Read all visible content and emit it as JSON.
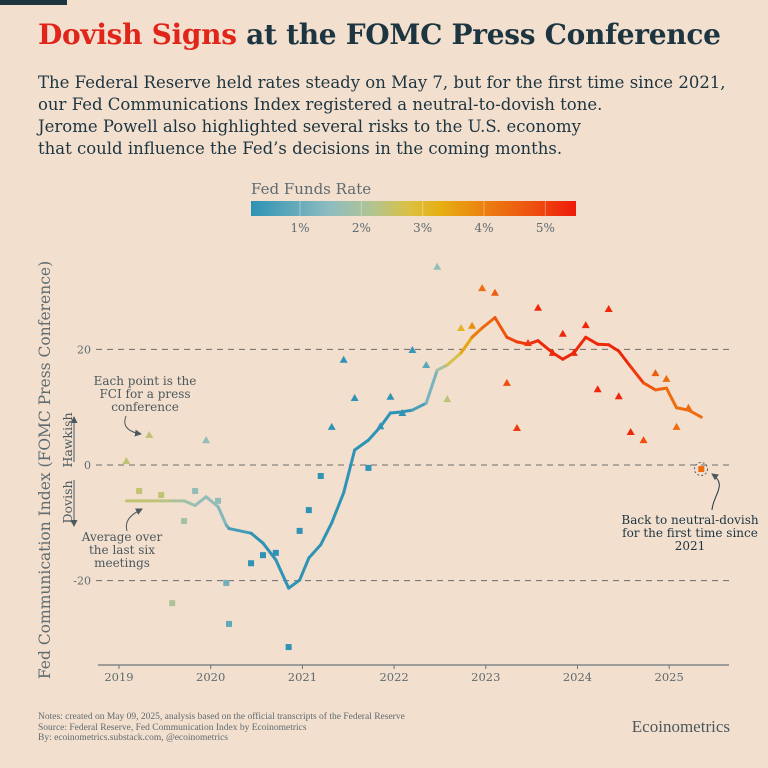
{
  "header": {
    "title_highlight": "Dovish Signs",
    "title_rest": " at the FOMC Press Conference",
    "subtitle_lines": [
      "The Federal Reserve held rates steady on May 7, but for the first time since 2021,",
      "our Fed Communications Index registered a neutral-to-dovish tone.",
      "Jerome Powell also highlighted several risks to the U.S. economy",
      "that could influence the Fed’s decisions in the coming months."
    ]
  },
  "colors": {
    "title_highlight": "#e0261b",
    "text": "#1d3540",
    "background": "#f2dfce"
  },
  "chart_data": {
    "type": "scatter",
    "ylabel": "Fed Communication Index (FOMC Press Conference)",
    "ylim": [
      -35,
      37
    ],
    "xlim": [
      2018.8,
      2025.65
    ],
    "yticks": [
      -20,
      0,
      20
    ],
    "ytick_labels": [
      "-20",
      "0",
      "20"
    ],
    "xticks": [
      2019,
      2020,
      2021,
      2022,
      2023,
      2024,
      2025
    ],
    "xtick_labels": [
      "2019",
      "2020",
      "2021",
      "2022",
      "2023",
      "2024",
      "2025"
    ],
    "grid": "dashed horizontal at -20, 0, 20",
    "hawkish_label": "Hawkish",
    "dovish_label": "Dovish",
    "colorbar": {
      "title": "Fed Funds Rate",
      "range": [
        0.2,
        5.5
      ],
      "ticks": [
        "1%",
        "2%",
        "3%",
        "4%",
        "5%"
      ],
      "tick_values": [
        1,
        2,
        3,
        4,
        5
      ],
      "stops": [
        [
          0.2,
          "#2e93b5"
        ],
        [
          1.5,
          "#8fbcbf"
        ],
        [
          2.2,
          "#b3c48e"
        ],
        [
          2.8,
          "#dcc040"
        ],
        [
          3.3,
          "#e6af12"
        ],
        [
          4.0,
          "#ec8010"
        ],
        [
          4.8,
          "#ee5010"
        ],
        [
          5.5,
          "#ee1a0a"
        ]
      ]
    },
    "marker_rule": "triangle when FCI > 0, square when FCI < 0",
    "series": [
      {
        "kind": "points",
        "columns": [
          "date",
          "fci",
          "fed_funds_rate"
        ],
        "values": [
          [
            2019.08,
            0.7,
            2.4
          ],
          [
            2019.22,
            -4.5,
            2.4
          ],
          [
            2019.33,
            5.2,
            2.4
          ],
          [
            2019.46,
            -5.2,
            2.4
          ],
          [
            2019.58,
            -23.9,
            2.1
          ],
          [
            2019.71,
            -9.7,
            1.9
          ],
          [
            2019.83,
            -4.5,
            1.6
          ],
          [
            2019.95,
            4.3,
            1.6
          ],
          [
            2020.08,
            -6.2,
            1.6
          ],
          [
            2020.17,
            -20.4,
            1.1
          ],
          [
            2020.2,
            -27.5,
            0.9
          ],
          [
            2020.44,
            -17,
            0.1
          ],
          [
            2020.57,
            -15.6,
            0.1
          ],
          [
            2020.71,
            -15.2,
            0.1
          ],
          [
            2020.85,
            -31.5,
            0.1
          ],
          [
            2020.97,
            -11.4,
            0.1
          ],
          [
            2021.07,
            -7.8,
            0.1
          ],
          [
            2021.2,
            -1.9,
            0.1
          ],
          [
            2021.32,
            6.6,
            0.1
          ],
          [
            2021.45,
            18.2,
            0.1
          ],
          [
            2021.57,
            11.6,
            0.1
          ],
          [
            2021.72,
            -0.5,
            0.1
          ],
          [
            2021.85,
            6.7,
            0.1
          ],
          [
            2021.96,
            11.8,
            0.1
          ],
          [
            2022.09,
            9,
            0.1
          ],
          [
            2022.2,
            19.9,
            0.33
          ],
          [
            2022.35,
            17.3,
            0.83
          ],
          [
            2022.47,
            34.3,
            1.58
          ],
          [
            2022.58,
            11.4,
            2.33
          ],
          [
            2022.73,
            23.7,
            3.08
          ],
          [
            2022.85,
            24.1,
            3.83
          ],
          [
            2022.96,
            30.6,
            4.33
          ],
          [
            2023.1,
            29.8,
            4.58
          ],
          [
            2023.23,
            14.2,
            4.83
          ],
          [
            2023.34,
            6.4,
            5.08
          ],
          [
            2023.46,
            21.1,
            5.08
          ],
          [
            2023.57,
            27.2,
            5.33
          ],
          [
            2023.73,
            19.4,
            5.33
          ],
          [
            2023.84,
            22.7,
            5.33
          ],
          [
            2023.96,
            19.4,
            5.33
          ],
          [
            2024.09,
            24.2,
            5.33
          ],
          [
            2024.22,
            13.1,
            5.33
          ],
          [
            2024.34,
            27,
            5.33
          ],
          [
            2024.45,
            11.9,
            5.33
          ],
          [
            2024.58,
            5.7,
            5.33
          ],
          [
            2024.72,
            4.3,
            4.83
          ],
          [
            2024.85,
            15.9,
            4.58
          ],
          [
            2024.97,
            14.9,
            4.33
          ],
          [
            2025.08,
            6.6,
            4.33
          ],
          [
            2025.21,
            9.9,
            4.33
          ],
          [
            2025.35,
            -0.7,
            4.33
          ]
        ]
      },
      {
        "kind": "line",
        "name": "Average over the last six meetings",
        "columns": [
          "date",
          "fci_avg",
          "fed_funds_rate"
        ],
        "values": [
          [
            2019.08,
            -6.2,
            2.4
          ],
          [
            2019.22,
            -6.2,
            2.4
          ],
          [
            2019.33,
            -6.2,
            2.4
          ],
          [
            2019.46,
            -6.2,
            2.4
          ],
          [
            2019.58,
            -6.2,
            2.1
          ],
          [
            2019.71,
            -6.2,
            1.9
          ],
          [
            2019.83,
            -7,
            1.6
          ],
          [
            2019.95,
            -5.5,
            1.6
          ],
          [
            2020.08,
            -7.2,
            1.6
          ],
          [
            2020.17,
            -10.4,
            1.1
          ],
          [
            2020.2,
            -11,
            0.9
          ],
          [
            2020.44,
            -11.8,
            0.1
          ],
          [
            2020.57,
            -13.5,
            0.1
          ],
          [
            2020.71,
            -16.4,
            0.1
          ],
          [
            2020.85,
            -21.3,
            0.1
          ],
          [
            2020.97,
            -19.9,
            0.1
          ],
          [
            2021.07,
            -16.1,
            0.1
          ],
          [
            2021.2,
            -13.8,
            0.1
          ],
          [
            2021.32,
            -10,
            0.1
          ],
          [
            2021.45,
            -4.8,
            0.1
          ],
          [
            2021.57,
            2.6,
            0.1
          ],
          [
            2021.72,
            4.3,
            0.1
          ],
          [
            2021.85,
            6.6,
            0.1
          ],
          [
            2021.96,
            9,
            0.1
          ],
          [
            2022.09,
            9.2,
            0.1
          ],
          [
            2022.2,
            9.5,
            0.33
          ],
          [
            2022.35,
            10.7,
            0.83
          ],
          [
            2022.47,
            16.4,
            1.58
          ],
          [
            2022.58,
            17.3,
            2.33
          ],
          [
            2022.73,
            19.4,
            3.08
          ],
          [
            2022.85,
            22.1,
            3.83
          ],
          [
            2022.96,
            23.7,
            4.33
          ],
          [
            2023.1,
            25.5,
            4.58
          ],
          [
            2023.23,
            22.1,
            4.83
          ],
          [
            2023.34,
            21.3,
            5.08
          ],
          [
            2023.46,
            20.9,
            5.08
          ],
          [
            2023.57,
            21.5,
            5.33
          ],
          [
            2023.73,
            19.4,
            5.33
          ],
          [
            2023.84,
            18.3,
            5.33
          ],
          [
            2023.96,
            19.4,
            5.33
          ],
          [
            2024.09,
            22.1,
            5.33
          ],
          [
            2024.22,
            20.9,
            5.33
          ],
          [
            2024.34,
            20.8,
            5.33
          ],
          [
            2024.45,
            19.7,
            5.33
          ],
          [
            2024.58,
            17,
            5.33
          ],
          [
            2024.72,
            14.2,
            4.83
          ],
          [
            2024.85,
            13,
            4.58
          ],
          [
            2024.97,
            13.3,
            4.33
          ],
          [
            2025.08,
            9.9,
            4.33
          ],
          [
            2025.21,
            9.5,
            4.33
          ],
          [
            2025.35,
            8.3,
            4.33
          ]
        ]
      }
    ],
    "annotations": {
      "point_note": [
        "Each point is the",
        "FCI for a press",
        "conference"
      ],
      "average_note": [
        "Average over",
        "the last six",
        "meetings"
      ],
      "latest_note": [
        "Back to neutral-dovish",
        "for the first time since",
        "2021"
      ]
    }
  },
  "footer": {
    "notes": [
      "Notes: created on May 09, 2025, analysis based on the official transcripts of the Federal Reserve",
      "Source: Federal Reserve, Fed Communication Index by Ecoinometrics",
      "By: ecoinometrics.substack.com, @ecoinometrics"
    ],
    "brand": "Ecoinometrics"
  }
}
